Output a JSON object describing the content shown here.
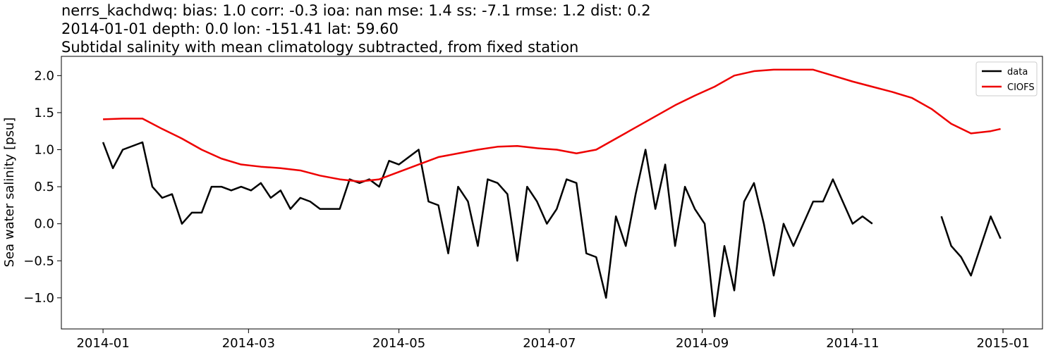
{
  "chart_data": {
    "type": "line",
    "title_lines": [
      "nerrs_kachdwq: bias: 1.0  corr: -0.3  ioa: nan  mse: 1.4  ss: -7.1  rmse: 1.2  dist: 0.2",
      "2014-01-01 depth: 0.0 lon: -151.41 lat: 59.60",
      "Subtidal salinity with mean climatology subtracted, from fixed station"
    ],
    "y_label": "Sea water salinity [psu]",
    "xlim": [
      -16.9,
      381
    ],
    "xticks": [
      {
        "value": 0,
        "label": "2014-01"
      },
      {
        "value": 59,
        "label": "2014-03"
      },
      {
        "value": 120,
        "label": "2014-05"
      },
      {
        "value": 181,
        "label": "2014-07"
      },
      {
        "value": 243,
        "label": "2014-09"
      },
      {
        "value": 304,
        "label": "2014-11"
      },
      {
        "value": 365,
        "label": "2015-01"
      }
    ],
    "ylim": [
      -1.42,
      2.26
    ],
    "yticks": [
      {
        "value": -1.0,
        "label": "−1.0"
      },
      {
        "value": -0.5,
        "label": "−0.5"
      },
      {
        "value": 0.0,
        "label": "0.0"
      },
      {
        "value": 0.5,
        "label": "0.5"
      },
      {
        "value": 1.0,
        "label": "1.0"
      },
      {
        "value": 1.5,
        "label": "1.5"
      },
      {
        "value": 2.0,
        "label": "2.0"
      }
    ],
    "legend": "upper right",
    "series": [
      {
        "name": "data",
        "color": "#000000",
        "x": [
          0,
          4,
          8,
          12,
          16,
          20,
          24,
          28,
          32,
          36,
          40,
          44,
          48,
          52,
          56,
          60,
          64,
          68,
          72,
          76,
          80,
          84,
          88,
          92,
          96,
          100,
          104,
          108,
          112,
          116,
          120,
          124,
          128,
          132,
          136,
          140,
          144,
          148,
          152,
          156,
          160,
          164,
          168,
          172,
          176,
          180,
          184,
          188,
          192,
          196,
          200,
          204,
          208,
          212,
          216,
          220,
          224,
          228,
          232,
          236,
          240,
          244,
          248,
          252,
          256,
          260,
          264,
          268,
          272,
          276,
          280,
          284,
          288,
          292,
          296,
          300,
          304,
          308,
          312,
          316,
          320,
          324,
          328,
          332,
          336,
          340,
          344,
          348,
          352,
          356,
          360,
          364
        ],
        "values": [
          1.1,
          0.75,
          1.0,
          1.05,
          1.1,
          0.5,
          0.35,
          0.4,
          0.0,
          0.15,
          0.15,
          0.5,
          0.5,
          0.45,
          0.5,
          0.45,
          0.55,
          0.35,
          0.45,
          0.2,
          0.35,
          0.3,
          0.2,
          0.2,
          0.2,
          0.6,
          0.55,
          0.6,
          0.5,
          0.85,
          0.8,
          0.9,
          1.0,
          0.3,
          0.25,
          -0.4,
          0.5,
          0.3,
          -0.3,
          0.6,
          0.55,
          0.4,
          -0.5,
          0.5,
          0.3,
          0.0,
          0.2,
          0.6,
          0.55,
          -0.4,
          -0.45,
          -1.0,
          0.1,
          -0.3,
          0.4,
          1.0,
          0.2,
          0.8,
          -0.3,
          0.5,
          0.2,
          0.0,
          -1.25,
          -0.3,
          -0.9,
          0.3,
          0.55,
          0.0,
          -0.7,
          0.0,
          -0.3,
          0.0,
          0.3,
          0.3,
          0.6,
          0.3,
          0.0,
          0.1,
          0.0,
          null,
          null,
          null,
          null,
          null,
          null,
          0.1,
          -0.3,
          -0.45,
          -0.7,
          -0.3,
          0.1,
          -0.2
        ]
      },
      {
        "name": "CIOFS",
        "color": "#ee0000",
        "x": [
          0,
          8,
          16,
          24,
          32,
          40,
          48,
          56,
          64,
          72,
          80,
          88,
          96,
          104,
          112,
          120,
          128,
          136,
          144,
          152,
          160,
          168,
          176,
          184,
          192,
          200,
          208,
          216,
          224,
          232,
          240,
          248,
          256,
          264,
          272,
          280,
          288,
          296,
          304,
          312,
          320,
          328,
          336,
          344,
          352,
          360,
          364
        ],
        "values": [
          1.41,
          1.42,
          1.42,
          1.28,
          1.15,
          1.0,
          0.88,
          0.8,
          0.77,
          0.75,
          0.72,
          0.65,
          0.6,
          0.57,
          0.6,
          0.7,
          0.8,
          0.9,
          0.95,
          1.0,
          1.04,
          1.05,
          1.02,
          1.0,
          0.95,
          1.0,
          1.15,
          1.3,
          1.45,
          1.6,
          1.73,
          1.85,
          2.0,
          2.06,
          2.08,
          2.08,
          2.08,
          2.0,
          1.92,
          1.85,
          1.78,
          1.7,
          1.55,
          1.35,
          1.22,
          1.25,
          1.28
        ]
      }
    ]
  }
}
